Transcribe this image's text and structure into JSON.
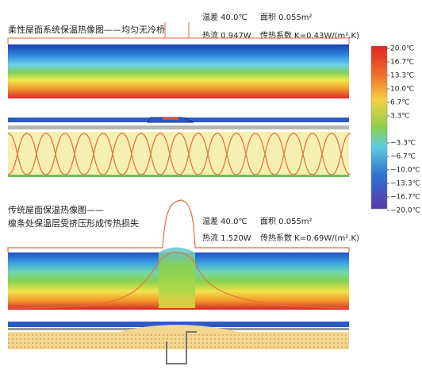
{
  "top": {
    "title": "柔性屋面系统保温热像图——均匀无冷桥",
    "stats": [
      "温差 40.0℃",
      "面积 0.055m²",
      "热流 0.947W",
      "传热系数 K=0.43W/(m².K)"
    ]
  },
  "bottom": {
    "title_lines": [
      "传统屋面保温热像图——",
      "檩条处保温层受挤压形成传热损失"
    ],
    "stats": [
      "温差 40.0℃",
      "面积 0.055m²",
      "热流 1.520W",
      "传热系数 K=0.69W/(m².K)"
    ]
  },
  "colorbar": {
    "ticks": [
      "20.0℃",
      "16.7℃",
      "13.3℃",
      "10.0℃",
      "6.7℃",
      "3.3℃",
      "−3.3℃",
      "−6.7℃",
      "−10.0℃",
      "−13.3℃",
      "−16.7℃",
      "−20.0℃"
    ]
  }
}
